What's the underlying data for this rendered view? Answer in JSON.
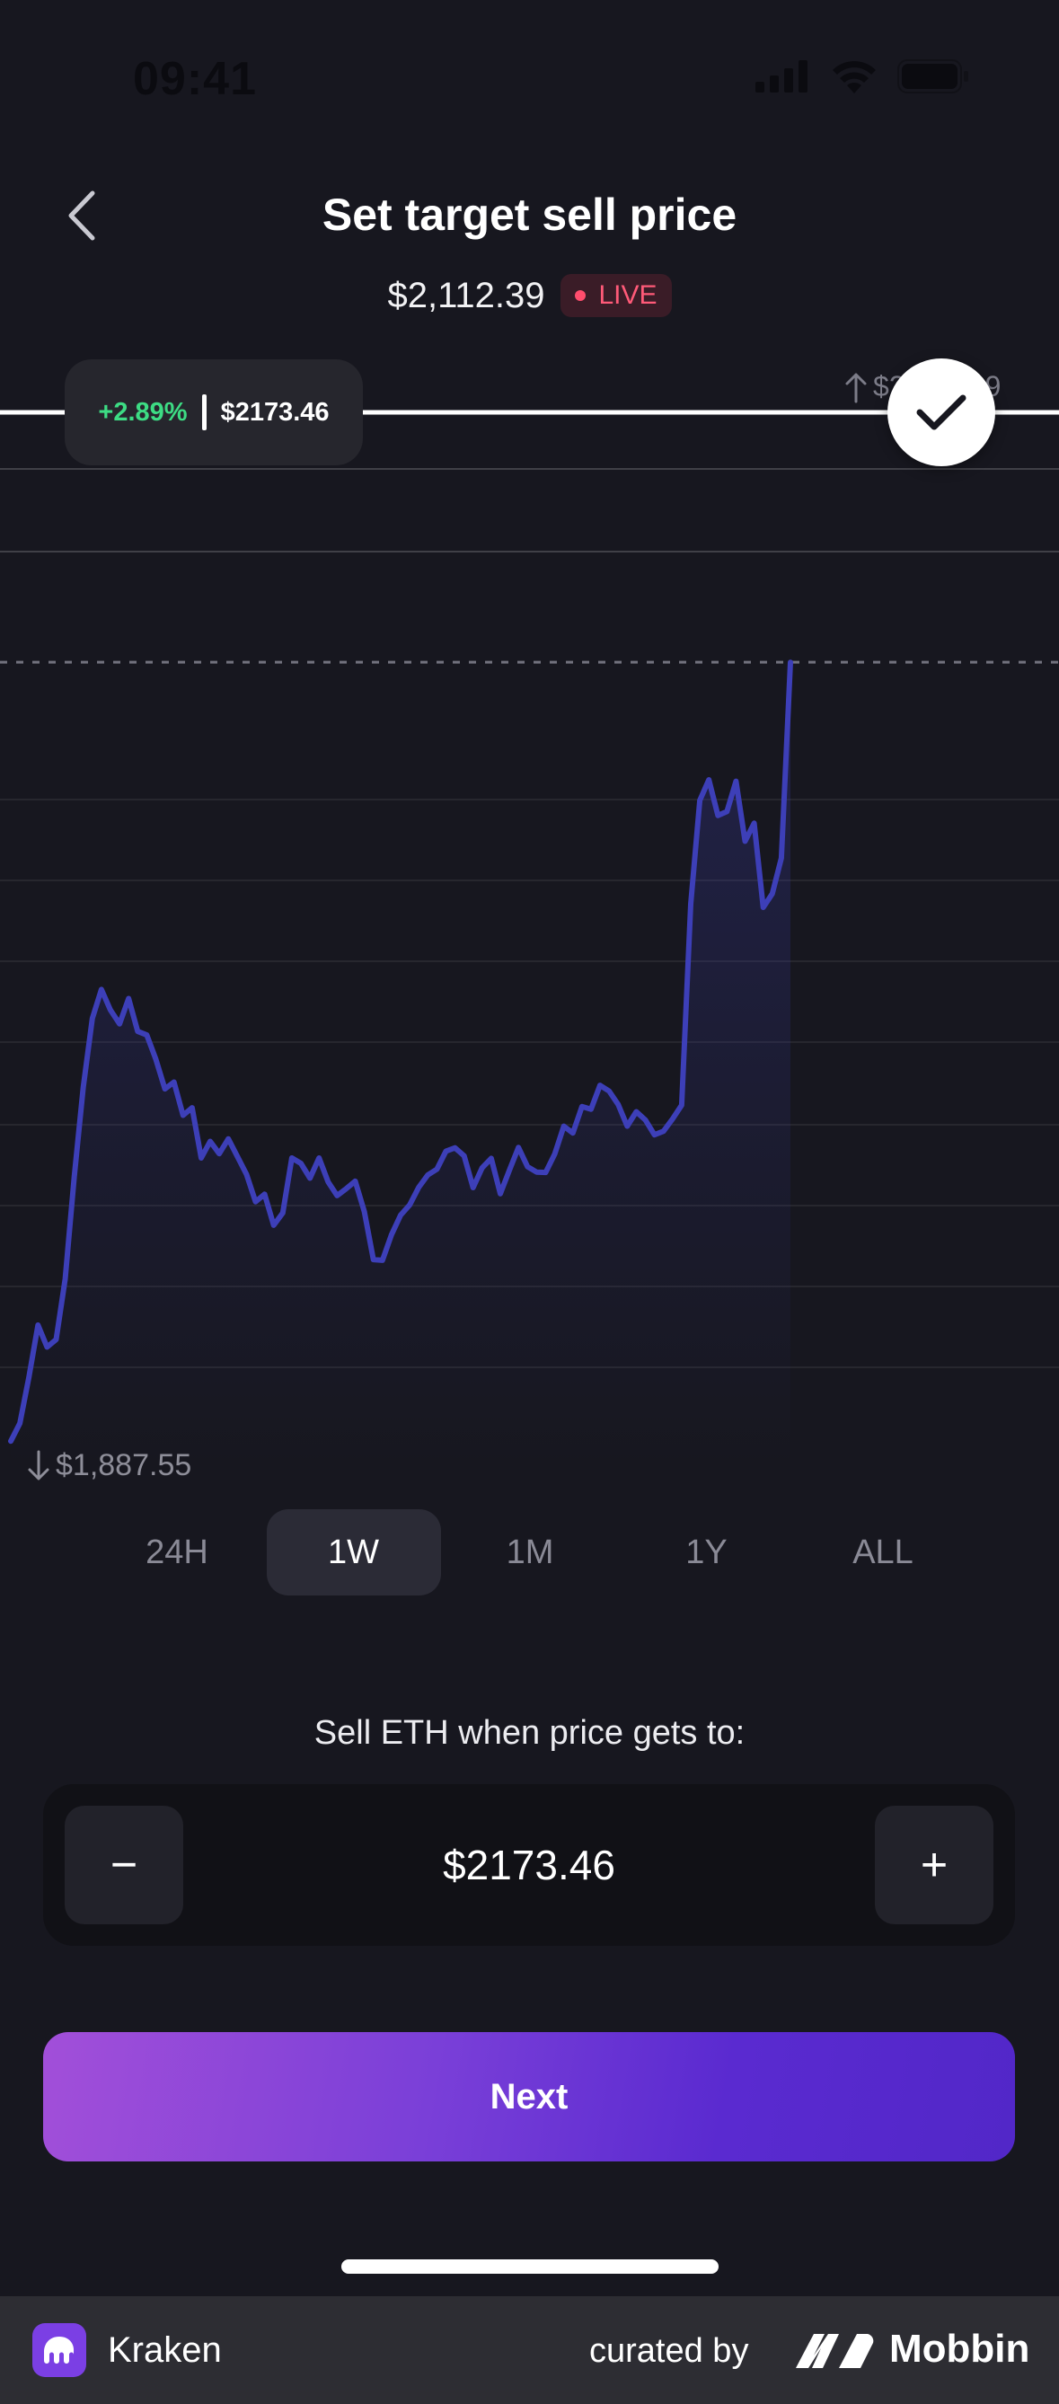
{
  "status_bar": {
    "time": "09:41"
  },
  "header": {
    "title": "Set target sell price",
    "current_price": "$2,112.39",
    "live_label": "LIVE"
  },
  "chart": {
    "target_change": "+2.89%",
    "target_price": "$2173.46",
    "high_label": "$2,185.39",
    "low_label": "$1,887.55"
  },
  "chart_data": {
    "type": "line",
    "title": "",
    "xlabel": "",
    "ylabel": "",
    "ylim": [
      1887.55,
      2112.39
    ],
    "x": [
      0,
      1,
      2,
      3,
      4,
      5,
      6,
      7,
      8,
      9,
      10,
      11,
      12,
      13,
      14,
      15,
      16,
      17,
      18,
      19,
      20,
      21,
      22,
      23,
      24,
      25,
      26,
      27,
      28,
      29,
      30,
      31,
      32,
      33,
      34,
      35,
      36,
      37,
      38,
      39,
      40,
      41,
      42,
      43,
      44,
      45,
      46,
      47,
      48,
      49,
      50,
      51,
      52,
      53,
      54,
      55,
      56,
      57,
      58,
      59,
      60,
      61,
      62,
      63,
      64,
      65,
      66,
      67,
      68,
      69,
      70,
      71,
      72,
      73,
      74,
      75,
      76,
      77,
      78,
      79,
      80,
      81,
      82,
      83,
      84,
      85,
      86
    ],
    "values": [
      1889.0,
      1893.9,
      1906.7,
      1921.1,
      1915.0,
      1917.1,
      1933.9,
      1962.2,
      1986.9,
      2005.9,
      2013.9,
      2008.2,
      2004.4,
      2011.4,
      2002.3,
      2001.3,
      1994.6,
      1986.4,
      1988.3,
      1979.1,
      1981.2,
      1967.3,
      1971.9,
      1968.5,
      1972.6,
      1967.7,
      1962.8,
      1955.2,
      1957.3,
      1948.7,
      1952.1,
      1967.3,
      1965.8,
      1961.7,
      1967.3,
      1960.7,
      1956.9,
      1958.8,
      1960.9,
      1952.5,
      1939.2,
      1939.0,
      1946.1,
      1951.5,
      1954.3,
      1959.2,
      1962.6,
      1964.2,
      1969.2,
      1970.1,
      1967.9,
      1959.1,
      1964.6,
      1967.2,
      1957.4,
      1963.9,
      1970.2,
      1964.9,
      1963.4,
      1963.3,
      1968.4,
      1976.1,
      1974.2,
      1981.5,
      1980.8,
      1987.4,
      1985.8,
      1982.1,
      1976.1,
      1980.1,
      1977.8,
      1973.7,
      1974.7,
      1978.1,
      1981.9,
      2037.5,
      2066.2,
      2071.9,
      2062.0,
      2063.1,
      2071.5,
      2054.9,
      2059.9,
      2036.6,
      2040.4,
      2050.2,
      2104.4
    ]
  },
  "timeframes": [
    "24H",
    "1W",
    "1M",
    "1Y",
    "ALL"
  ],
  "active_timeframe": "1W",
  "target_input": {
    "label": "Sell ETH when price gets to:",
    "value": "$2173.46",
    "minus": "−",
    "plus": "+"
  },
  "next_button": "Next",
  "footer": {
    "app_name": "Kraken",
    "curated_by": "curated by",
    "brand": "Mobbin"
  },
  "colors": {
    "background": "#17171f",
    "line": "#3d3fb8",
    "positive": "#3ddc84",
    "live": "#ff5a78",
    "button_gradient_start": "#a24fd9",
    "button_gradient_end": "#5227c8"
  }
}
